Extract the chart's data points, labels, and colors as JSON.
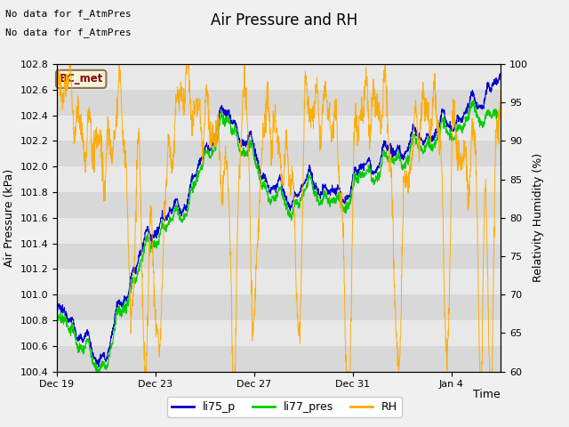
{
  "title": "Air Pressure and RH",
  "note1": "No data for f_AtmPres",
  "note2": "No data for f_AtmPres",
  "location_label": "BC_met",
  "xlabel": "Time",
  "ylabel_left": "Air Pressure (kPa)",
  "ylabel_right": "Relativity Humidity (%)",
  "ylim_left": [
    100.4,
    102.8
  ],
  "ylim_right": [
    60,
    100
  ],
  "yticks_left": [
    100.4,
    100.6,
    100.8,
    101.0,
    101.2,
    101.4,
    101.6,
    101.8,
    102.0,
    102.2,
    102.4,
    102.6,
    102.8
  ],
  "yticks_right": [
    60,
    65,
    70,
    75,
    80,
    85,
    90,
    95,
    100
  ],
  "xtick_positions": [
    0,
    4,
    8,
    12,
    16
  ],
  "xtick_labels": [
    "Dec 19",
    "Dec 23",
    "Dec 27",
    "Dec 31",
    "Jan 4"
  ],
  "legend_labels": [
    "li75_p",
    "li77_pres",
    "RH"
  ],
  "line_color_li75": "#0000cc",
  "line_color_li77": "#00cc00",
  "line_color_rh": "#ffaa00",
  "bg_color": "#f0f0f0",
  "plot_bg_color_light": "#e8e8e8",
  "plot_bg_color_dark": "#d0d0d0",
  "title_fontsize": 12,
  "label_fontsize": 9,
  "tick_fontsize": 8,
  "note_fontsize": 8
}
